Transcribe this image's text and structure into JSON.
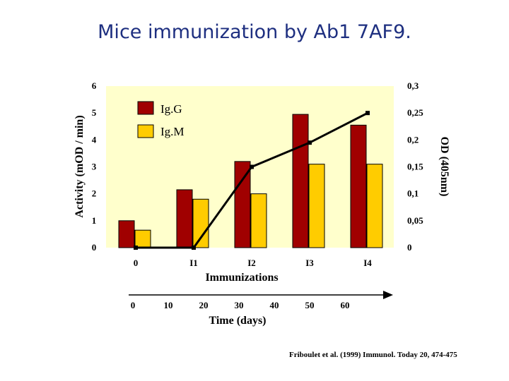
{
  "slide": {
    "title": "Mice immunization by Ab1 7AF9.",
    "citation": "Friboulet et al. (1999) Immunol. Today 20, 474-475"
  },
  "colors": {
    "title": "#1e2f80",
    "plot_background": "#ffffcc",
    "igg": "#a00000",
    "igm": "#ffcc00",
    "line": "#000000"
  },
  "chart_data": {
    "type": "bar",
    "categories": [
      "0",
      "I1",
      "I2",
      "I3",
      "I4"
    ],
    "series": [
      {
        "name": "Ig.G",
        "kind": "bar",
        "axis": "left",
        "values": [
          1.0,
          2.15,
          3.2,
          4.95,
          4.55
        ]
      },
      {
        "name": "Ig.M",
        "kind": "bar",
        "axis": "left",
        "values": [
          0.65,
          1.8,
          2.0,
          3.1,
          3.1
        ]
      },
      {
        "kind": "line",
        "axis": "right",
        "values": [
          0,
          0,
          0.15,
          0.195,
          0.25
        ]
      }
    ],
    "xlabel": "Immunizations",
    "ylabel": "Activity (mOD / min)",
    "y2label": "OD (405nm)",
    "ylim": [
      0,
      6
    ],
    "y2lim": [
      0,
      0.3
    ],
    "yticks": [
      "0",
      "1",
      "2",
      "3",
      "4",
      "5",
      "6"
    ],
    "y2ticks": [
      "0",
      "0,05",
      "0,1",
      "0,15",
      "0,2",
      "0,25",
      "0,3"
    ],
    "time_axis": {
      "label": "Time (days)",
      "ticks": [
        "0",
        "10",
        "20",
        "30",
        "40",
        "50",
        "60"
      ]
    },
    "legend_position": "top-left",
    "grid": false
  }
}
